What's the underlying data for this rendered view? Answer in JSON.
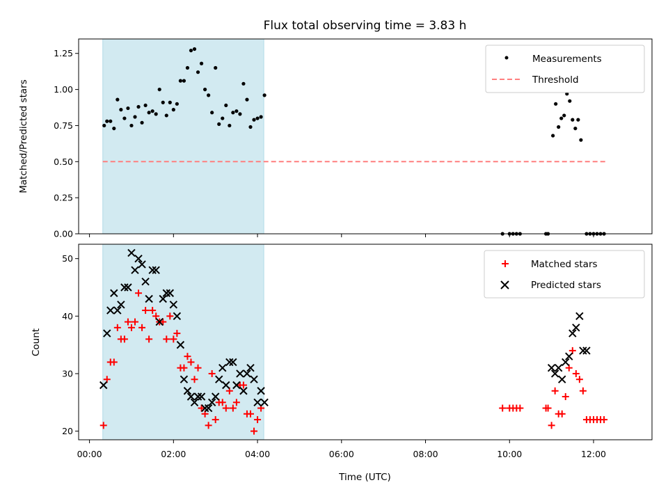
{
  "chart_data": [
    {
      "type": "scatter",
      "title": "Flux total observing time = 3.83 h",
      "xlabel": "",
      "ylabel": "Matched/Predicted stars",
      "xlim": [
        "00:00",
        "13:00"
      ],
      "ylim": [
        0,
        1.35
      ],
      "yticks": [
        "0.00",
        "0.25",
        "0.50",
        "0.75",
        "1.00",
        "1.25"
      ],
      "highlight_span": {
        "start": "00:19",
        "end": "04:09",
        "color": "#add8e6"
      },
      "legend": {
        "position": "top-right",
        "entries": [
          "Measurements",
          "Threshold"
        ]
      },
      "series": [
        {
          "name": "Measurements",
          "marker": "dot",
          "color": "#000000",
          "points": [
            [
              "00:21",
              0.75
            ],
            [
              "00:25",
              0.78
            ],
            [
              "00:30",
              0.78
            ],
            [
              "00:35",
              0.73
            ],
            [
              "00:40",
              0.93
            ],
            [
              "00:45",
              0.86
            ],
            [
              "00:50",
              0.8
            ],
            [
              "00:55",
              0.87
            ],
            [
              "01:00",
              0.75
            ],
            [
              "01:05",
              0.81
            ],
            [
              "01:10",
              0.88
            ],
            [
              "01:15",
              0.77
            ],
            [
              "01:20",
              0.89
            ],
            [
              "01:25",
              0.84
            ],
            [
              "01:30",
              0.85
            ],
            [
              "01:35",
              0.83
            ],
            [
              "01:40",
              1.0
            ],
            [
              "01:45",
              0.91
            ],
            [
              "01:50",
              0.82
            ],
            [
              "01:55",
              0.91
            ],
            [
              "02:00",
              0.86
            ],
            [
              "02:05",
              0.9
            ],
            [
              "02:10",
              1.06
            ],
            [
              "02:15",
              1.06
            ],
            [
              "02:20",
              1.15
            ],
            [
              "02:25",
              1.27
            ],
            [
              "02:30",
              1.28
            ],
            [
              "02:35",
              1.12
            ],
            [
              "02:40",
              1.18
            ],
            [
              "02:45",
              1.0
            ],
            [
              "02:50",
              0.96
            ],
            [
              "02:55",
              0.84
            ],
            [
              "03:00",
              1.15
            ],
            [
              "03:05",
              0.76
            ],
            [
              "03:10",
              0.8
            ],
            [
              "03:15",
              0.89
            ],
            [
              "03:20",
              0.75
            ],
            [
              "03:25",
              0.84
            ],
            [
              "03:30",
              0.85
            ],
            [
              "03:35",
              0.83
            ],
            [
              "03:40",
              1.04
            ],
            [
              "03:45",
              0.93
            ],
            [
              "03:50",
              0.74
            ],
            [
              "03:55",
              0.79
            ],
            [
              "04:00",
              0.8
            ],
            [
              "04:05",
              0.81
            ],
            [
              "04:10",
              0.96
            ],
            [
              "09:50",
              0.0
            ],
            [
              "10:00",
              0.0
            ],
            [
              "10:05",
              0.0
            ],
            [
              "10:10",
              0.0
            ],
            [
              "10:15",
              0.0
            ],
            [
              "10:52",
              0.0
            ],
            [
              "10:55",
              0.0
            ],
            [
              "11:02",
              0.68
            ],
            [
              "11:06",
              0.9
            ],
            [
              "11:10",
              0.74
            ],
            [
              "11:14",
              0.8
            ],
            [
              "11:18",
              0.82
            ],
            [
              "11:22",
              0.97
            ],
            [
              "11:26",
              0.92
            ],
            [
              "11:30",
              0.79
            ],
            [
              "11:34",
              0.73
            ],
            [
              "11:38",
              0.79
            ],
            [
              "11:42",
              0.65
            ],
            [
              "11:50",
              0.0
            ],
            [
              "11:55",
              0.0
            ],
            [
              "12:00",
              0.0
            ],
            [
              "12:05",
              0.0
            ],
            [
              "12:10",
              0.0
            ],
            [
              "12:15",
              0.0
            ]
          ]
        },
        {
          "name": "Threshold",
          "marker": "dashed-line",
          "color": "#ff7f7f",
          "points": [
            [
              "00:19",
              0.5
            ],
            [
              "12:20",
              0.5
            ]
          ]
        }
      ]
    },
    {
      "type": "scatter",
      "title": "",
      "xlabel": "Time (UTC)",
      "ylabel": "Count",
      "xlim": [
        "00:00",
        "13:00"
      ],
      "ylim": [
        18.5,
        52.5
      ],
      "yticks": [
        "20",
        "30",
        "40",
        "50"
      ],
      "xticks": [
        "00:00",
        "02:00",
        "04:00",
        "06:00",
        "08:00",
        "10:00",
        "12:00"
      ],
      "highlight_span": {
        "start": "00:19",
        "end": "04:09",
        "color": "#add8e6"
      },
      "legend": {
        "position": "top-right",
        "entries": [
          "Matched stars",
          "Predicted stars"
        ]
      },
      "series": [
        {
          "name": "Matched stars",
          "marker": "plus",
          "color": "#ff0000",
          "points": [
            [
              "00:20",
              21
            ],
            [
              "00:25",
              29
            ],
            [
              "00:30",
              32
            ],
            [
              "00:35",
              32
            ],
            [
              "00:40",
              38
            ],
            [
              "00:45",
              36
            ],
            [
              "00:50",
              36
            ],
            [
              "00:55",
              39
            ],
            [
              "01:00",
              38
            ],
            [
              "01:05",
              39
            ],
            [
              "01:10",
              44
            ],
            [
              "01:15",
              38
            ],
            [
              "01:20",
              41
            ],
            [
              "01:25",
              36
            ],
            [
              "01:30",
              41
            ],
            [
              "01:35",
              40
            ],
            [
              "01:40",
              39
            ],
            [
              "01:45",
              39
            ],
            [
              "01:50",
              36
            ],
            [
              "01:55",
              40
            ],
            [
              "02:00",
              36
            ],
            [
              "02:05",
              37
            ],
            [
              "02:10",
              31
            ],
            [
              "02:15",
              31
            ],
            [
              "02:20",
              33
            ],
            [
              "02:25",
              32
            ],
            [
              "02:30",
              29
            ],
            [
              "02:35",
              31
            ],
            [
              "02:40",
              24
            ],
            [
              "02:45",
              23
            ],
            [
              "02:50",
              21
            ],
            [
              "02:55",
              30
            ],
            [
              "03:00",
              22
            ],
            [
              "03:05",
              25
            ],
            [
              "03:10",
              25
            ],
            [
              "03:15",
              24
            ],
            [
              "03:20",
              27
            ],
            [
              "03:25",
              24
            ],
            [
              "03:30",
              25
            ],
            [
              "03:35",
              28
            ],
            [
              "03:40",
              28
            ],
            [
              "03:45",
              23
            ],
            [
              "03:50",
              23
            ],
            [
              "03:55",
              20
            ],
            [
              "04:00",
              22
            ],
            [
              "04:05",
              24
            ],
            [
              "09:50",
              24
            ],
            [
              "10:00",
              24
            ],
            [
              "10:05",
              24
            ],
            [
              "10:10",
              24
            ],
            [
              "10:15",
              24
            ],
            [
              "10:52",
              24
            ],
            [
              "10:55",
              24
            ],
            [
              "11:00",
              21
            ],
            [
              "11:05",
              27
            ],
            [
              "11:10",
              23
            ],
            [
              "11:15",
              23
            ],
            [
              "11:20",
              26
            ],
            [
              "11:25",
              31
            ],
            [
              "11:30",
              34
            ],
            [
              "11:35",
              30
            ],
            [
              "11:40",
              29
            ],
            [
              "11:45",
              27
            ],
            [
              "11:50",
              22
            ],
            [
              "11:55",
              22
            ],
            [
              "12:00",
              22
            ],
            [
              "12:05",
              22
            ],
            [
              "12:10",
              22
            ],
            [
              "12:15",
              22
            ]
          ]
        },
        {
          "name": "Predicted stars",
          "marker": "x",
          "color": "#000000",
          "points": [
            [
              "00:20",
              28
            ],
            [
              "00:25",
              37
            ],
            [
              "00:30",
              41
            ],
            [
              "00:35",
              44
            ],
            [
              "00:40",
              41
            ],
            [
              "00:45",
              42
            ],
            [
              "00:50",
              45
            ],
            [
              "00:55",
              45
            ],
            [
              "01:00",
              51
            ],
            [
              "01:05",
              48
            ],
            [
              "01:10",
              50
            ],
            [
              "01:15",
              49
            ],
            [
              "01:20",
              46
            ],
            [
              "01:25",
              43
            ],
            [
              "01:30",
              48
            ],
            [
              "01:35",
              48
            ],
            [
              "01:40",
              39
            ],
            [
              "01:45",
              43
            ],
            [
              "01:50",
              44
            ],
            [
              "01:55",
              44
            ],
            [
              "02:00",
              42
            ],
            [
              "02:05",
              40
            ],
            [
              "02:10",
              35
            ],
            [
              "02:15",
              29
            ],
            [
              "02:20",
              27
            ],
            [
              "02:25",
              26
            ],
            [
              "02:30",
              25
            ],
            [
              "02:35",
              26
            ],
            [
              "02:40",
              26
            ],
            [
              "02:45",
              24
            ],
            [
              "02:50",
              24
            ],
            [
              "02:55",
              25
            ],
            [
              "03:00",
              26
            ],
            [
              "03:05",
              29
            ],
            [
              "03:10",
              31
            ],
            [
              "03:15",
              28
            ],
            [
              "03:20",
              32
            ],
            [
              "03:25",
              32
            ],
            [
              "03:30",
              28
            ],
            [
              "03:35",
              30
            ],
            [
              "03:40",
              27
            ],
            [
              "03:45",
              30
            ],
            [
              "03:50",
              31
            ],
            [
              "03:55",
              29
            ],
            [
              "04:00",
              25
            ],
            [
              "04:05",
              27
            ],
            [
              "04:10",
              25
            ],
            [
              "11:00",
              31
            ],
            [
              "11:05",
              30
            ],
            [
              "11:10",
              31
            ],
            [
              "11:15",
              29
            ],
            [
              "11:20",
              32
            ],
            [
              "11:25",
              33
            ],
            [
              "11:30",
              37
            ],
            [
              "11:35",
              38
            ],
            [
              "11:40",
              40
            ],
            [
              "11:45",
              34
            ],
            [
              "11:50",
              34
            ]
          ]
        }
      ]
    }
  ]
}
